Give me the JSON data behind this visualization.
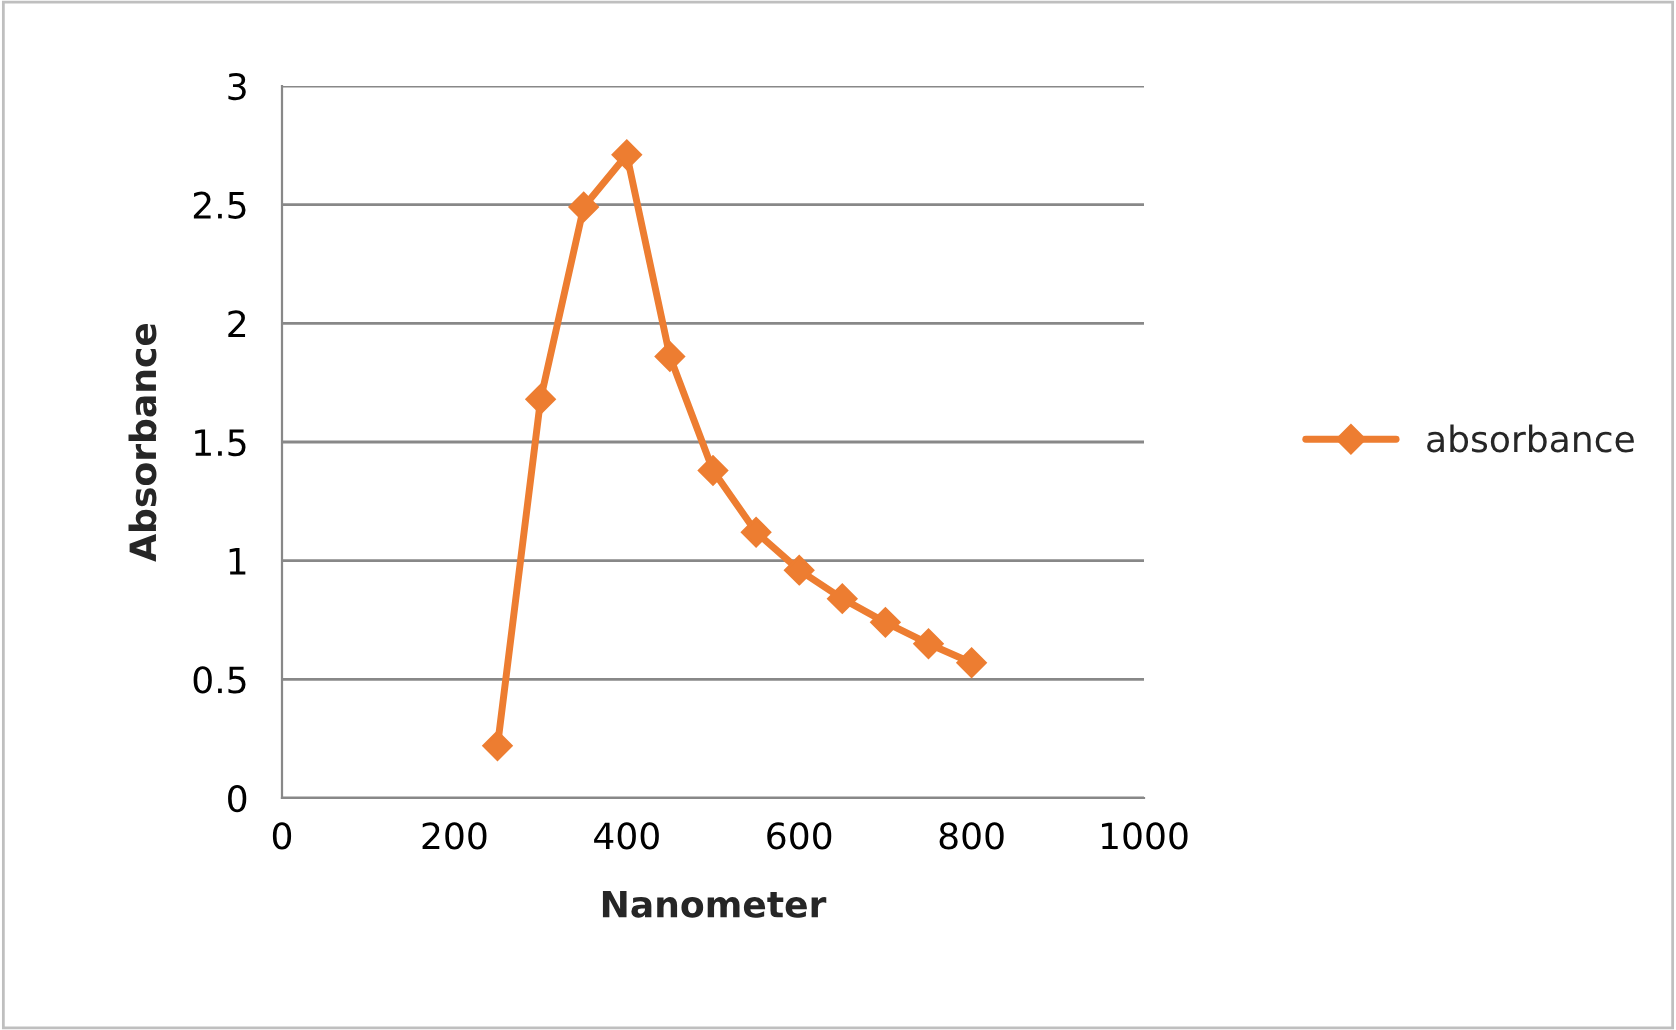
{
  "chart_data": {
    "type": "line",
    "xlabel": "Nanometer",
    "ylabel": "Absorbance",
    "series": [
      {
        "name": "absorbance",
        "color": "#ed7d31",
        "x": [
          250,
          300,
          350,
          400,
          450,
          500,
          550,
          600,
          650,
          700,
          750,
          800
        ],
        "values": [
          0.22,
          1.68,
          2.49,
          2.71,
          1.86,
          1.38,
          1.12,
          0.96,
          0.84,
          0.74,
          0.65,
          0.57
        ]
      }
    ],
    "xlim": [
      0,
      1000
    ],
    "xticks": [
      0,
      200,
      400,
      600,
      800,
      1000
    ],
    "ylim": [
      0,
      3
    ],
    "yticks": [
      0,
      0.5,
      1,
      1.5,
      2,
      2.5,
      3
    ],
    "grid": "y",
    "legend": "right",
    "marker": "diamond",
    "line_style": "solid"
  }
}
